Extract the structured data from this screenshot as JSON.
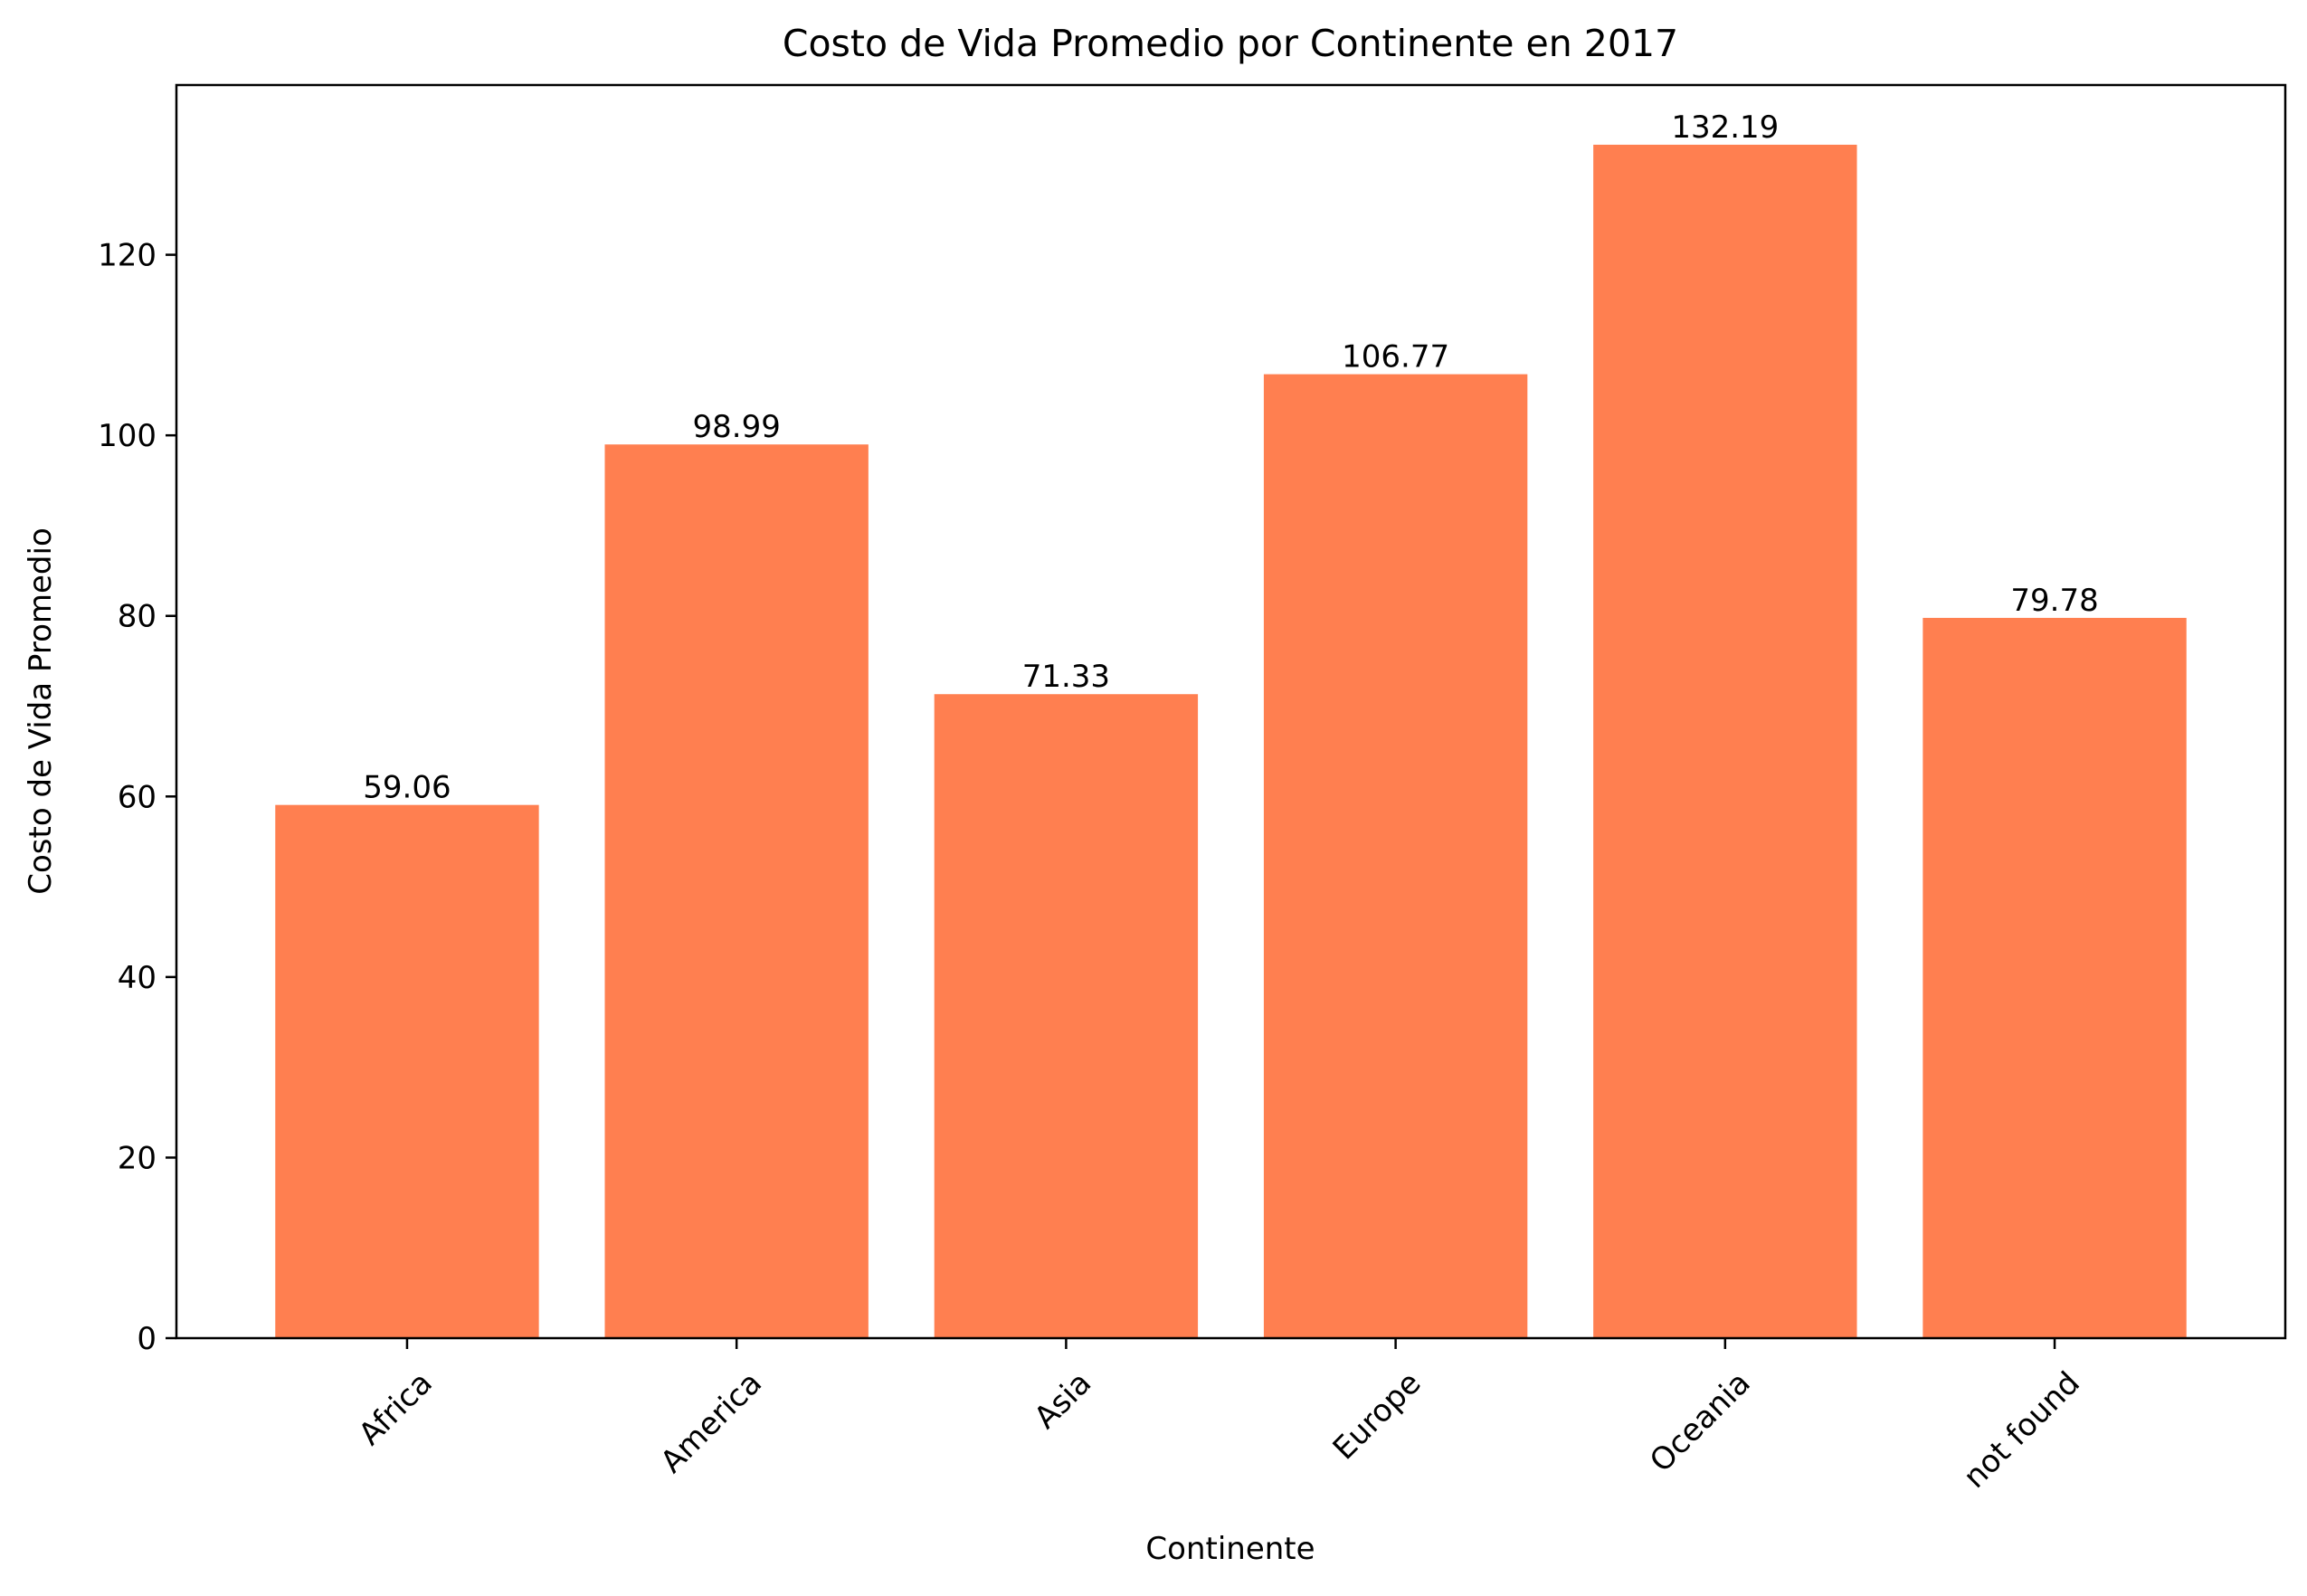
{
  "chart_data": {
    "type": "bar",
    "title": "Costo de Vida Promedio por Continente en 2017",
    "xlabel": "Continente",
    "ylabel": "Costo de Vida Promedio",
    "categories": [
      "Africa",
      "America",
      "Asia",
      "Europe",
      "Oceania",
      "not found"
    ],
    "values": [
      59.06,
      98.99,
      71.33,
      106.77,
      132.19,
      79.78
    ],
    "value_labels": [
      "59.06",
      "98.99",
      "71.33",
      "106.77",
      "132.19",
      "79.78"
    ],
    "ylim": [
      0,
      138.8
    ],
    "yticks": [
      0,
      20,
      40,
      60,
      80,
      100,
      120
    ],
    "ytick_labels": [
      "0",
      "20",
      "40",
      "60",
      "80",
      "100",
      "120"
    ],
    "grid": false,
    "legend": "none",
    "xtick_rotation_deg": 45,
    "bar_color": "#ff7f50",
    "axis_color": "#000000"
  }
}
